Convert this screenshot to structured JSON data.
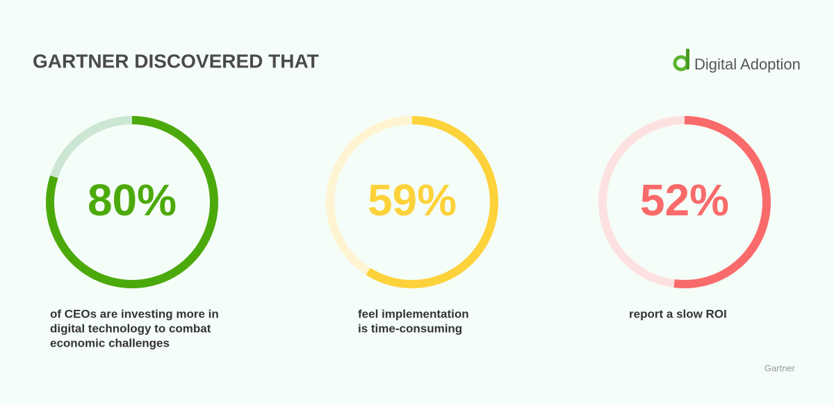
{
  "header": {
    "title": "GARTNER DISCOVERED THAT"
  },
  "logo": {
    "text": "Digital Adoption"
  },
  "source": "Gartner",
  "chart_data": [
    {
      "type": "donut",
      "values": [
        80
      ],
      "value_labels": [
        "80%"
      ],
      "color": "#4ca90b",
      "track_color": "#cbe6d3",
      "caption": [
        "of CEOs are investing more in",
        "digital technology to combat",
        "economic challenges"
      ]
    },
    {
      "type": "donut",
      "values": [
        59
      ],
      "value_labels": [
        "59%"
      ],
      "color": "#fdd23a",
      "track_color": "#fff4d2",
      "caption": [
        "feel implementation",
        "is time-consuming"
      ]
    },
    {
      "type": "donut",
      "values": [
        52
      ],
      "value_labels": [
        "52%"
      ],
      "color": "#f96a6a",
      "track_color": "#fde1e1",
      "caption": [
        "report a slow ROI"
      ]
    }
  ]
}
